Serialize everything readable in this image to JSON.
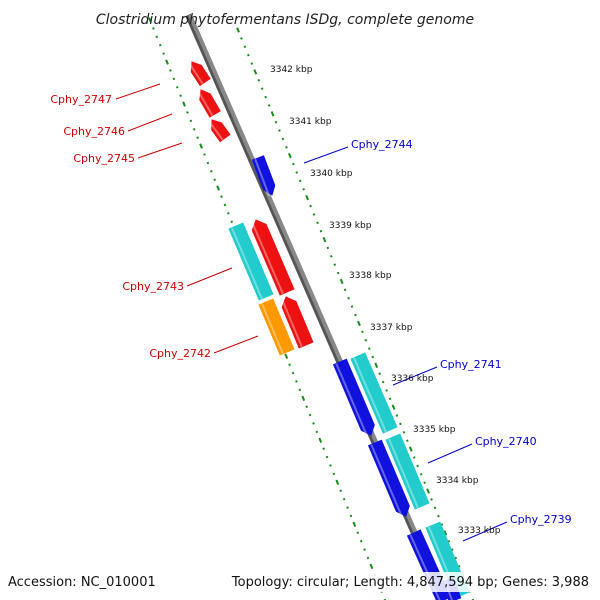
{
  "title": "Clostridium phytofermentans ISDg, complete genome",
  "footer": {
    "accession": "Accession: NC_010001",
    "summary": "Topology: circular; Length: 4,847,594 bp; Genes: 3,988"
  },
  "colors": {
    "backbone": "#888888",
    "backbone_edge": "#555555",
    "track_dots": "#1a8a1a",
    "plus_strand_label": "#cc0000",
    "minus_strand_label": "#0000cc",
    "gene_red": "#ee1111",
    "gene_blue": "#1111dd",
    "gene_cyan": "#22cccc",
    "gene_orange": "#ff9900"
  },
  "ticks": [
    {
      "label": "3342 kbp"
    },
    {
      "label": "3341 kbp"
    },
    {
      "label": "3340 kbp"
    },
    {
      "label": "3339 kbp"
    },
    {
      "label": "3338 kbp"
    },
    {
      "label": "3337 kbp"
    },
    {
      "label": "3336 kbp"
    },
    {
      "label": "3335 kbp"
    },
    {
      "label": "3334 kbp"
    },
    {
      "label": "3333 kbp"
    }
  ],
  "gene_labels": [
    {
      "name": "Cphy_2747",
      "strand": "plus"
    },
    {
      "name": "Cphy_2746",
      "strand": "plus"
    },
    {
      "name": "Cphy_2745",
      "strand": "plus"
    },
    {
      "name": "Cphy_2743",
      "strand": "plus"
    },
    {
      "name": "Cphy_2742",
      "strand": "plus"
    },
    {
      "name": "Cphy_2744",
      "strand": "minus"
    },
    {
      "name": "Cphy_2741",
      "strand": "minus"
    },
    {
      "name": "Cphy_2740",
      "strand": "minus"
    },
    {
      "name": "Cphy_2739",
      "strand": "minus"
    }
  ],
  "genes": [
    {
      "color": "red"
    },
    {
      "color": "red"
    },
    {
      "color": "red"
    },
    {
      "color": "blue"
    },
    {
      "color": "cyan"
    },
    {
      "color": "red"
    },
    {
      "color": "orange"
    },
    {
      "color": "red"
    },
    {
      "color": "blue"
    },
    {
      "color": "cyan"
    },
    {
      "color": "blue"
    },
    {
      "color": "cyan"
    },
    {
      "color": "blue"
    },
    {
      "color": "cyan"
    },
    {
      "color": "blue"
    }
  ]
}
